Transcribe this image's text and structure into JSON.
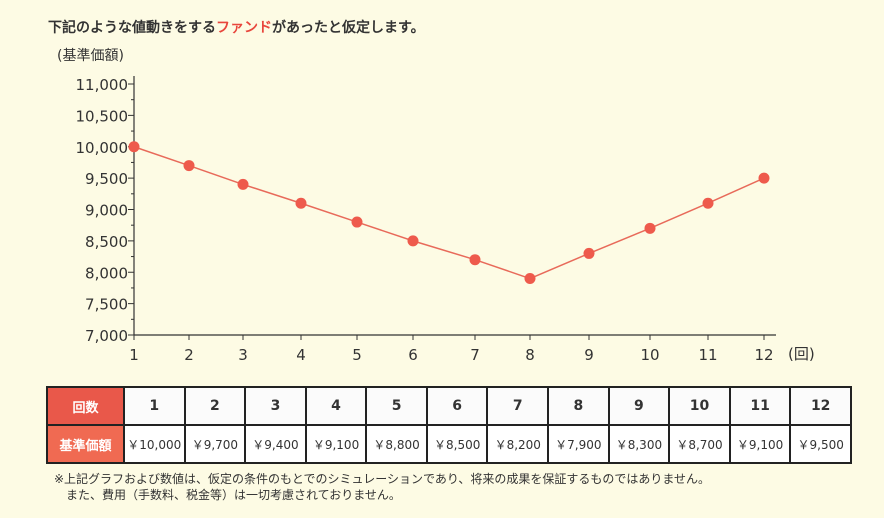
{
  "heading": {
    "before": "下記のような値動きをする",
    "highlight": "ファンド",
    "after": "があったと仮定します。"
  },
  "colors": {
    "accent": "#e8463c",
    "marker": "#ee5a4c",
    "line": "#e86a5a",
    "header": "#f06a52",
    "background": "#fdfbe4"
  },
  "chart_data": {
    "type": "line",
    "ylabel": "(基準価額)",
    "xlabel": "(回)",
    "x": [
      1,
      2,
      3,
      4,
      5,
      6,
      7,
      8,
      9,
      10,
      11,
      12
    ],
    "series": [
      {
        "values": [
          10000,
          9700,
          9400,
          9100,
          8800,
          8500,
          8200,
          7900,
          8300,
          8700,
          9100,
          9500
        ]
      }
    ],
    "ylim": [
      7000,
      11000
    ],
    "yticks": [
      7000,
      7500,
      8000,
      8500,
      9000,
      9500,
      10000,
      10500,
      11000
    ],
    "ytick_labels": [
      "7,000",
      "7,500",
      "8,000",
      "8,500",
      "9,000",
      "9,500",
      "10,000",
      "10,500",
      "11,000"
    ],
    "grid": false
  },
  "table": {
    "row1_header": "回数",
    "row2_header": "基準価額",
    "counts": [
      "1",
      "2",
      "3",
      "4",
      "5",
      "6",
      "7",
      "8",
      "9",
      "10",
      "11",
      "12"
    ],
    "prices": [
      "￥10,000",
      "￥9,700",
      "￥9,400",
      "￥9,100",
      "￥8,800",
      "￥8,500",
      "￥8,200",
      "￥7,900",
      "￥8,300",
      "￥8,700",
      "￥9,100",
      "￥9,500"
    ]
  },
  "notes": {
    "line1": "※上記グラフおよび数値は、仮定の条件のもとでのシミュレーションであり、将来の成果を保証するものではありません。",
    "line2": "また、費用（手数料、税金等）は一切考慮されておりません。"
  }
}
